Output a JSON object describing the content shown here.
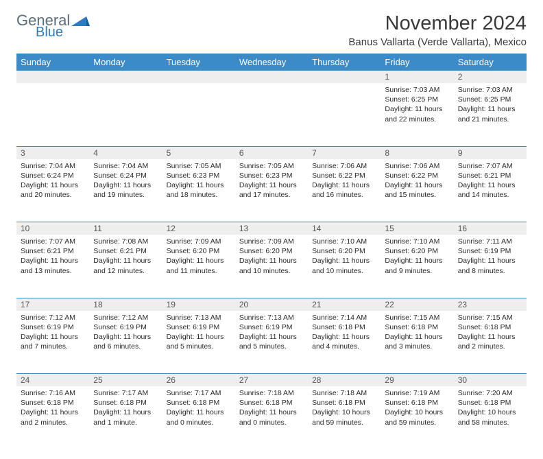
{
  "logo": {
    "general": "General",
    "blue": "Blue"
  },
  "colors": {
    "header_bg": "#3b8bc8",
    "header_text": "#ffffff",
    "daynum_bg": "#eeeeee",
    "border": "#3b8bc8",
    "title": "#3a3a3a",
    "logo_gray": "#5a6d7a",
    "logo_blue": "#2f7bbf"
  },
  "title": "November 2024",
  "subtitle": "Banus Vallarta (Verde Vallarta), Mexico",
  "weekdays": [
    "Sunday",
    "Monday",
    "Tuesday",
    "Wednesday",
    "Thursday",
    "Friday",
    "Saturday"
  ],
  "rows": [
    {
      "nums": [
        "",
        "",
        "",
        "",
        "",
        "1",
        "2"
      ],
      "cells": [
        {
          "lines": []
        },
        {
          "lines": []
        },
        {
          "lines": []
        },
        {
          "lines": []
        },
        {
          "lines": []
        },
        {
          "lines": [
            "Sunrise: 7:03 AM",
            "Sunset: 6:25 PM",
            "Daylight: 11 hours and 22 minutes."
          ]
        },
        {
          "lines": [
            "Sunrise: 7:03 AM",
            "Sunset: 6:25 PM",
            "Daylight: 11 hours and 21 minutes."
          ]
        }
      ]
    },
    {
      "nums": [
        "3",
        "4",
        "5",
        "6",
        "7",
        "8",
        "9"
      ],
      "cells": [
        {
          "lines": [
            "Sunrise: 7:04 AM",
            "Sunset: 6:24 PM",
            "Daylight: 11 hours and 20 minutes."
          ]
        },
        {
          "lines": [
            "Sunrise: 7:04 AM",
            "Sunset: 6:24 PM",
            "Daylight: 11 hours and 19 minutes."
          ]
        },
        {
          "lines": [
            "Sunrise: 7:05 AM",
            "Sunset: 6:23 PM",
            "Daylight: 11 hours and 18 minutes."
          ]
        },
        {
          "lines": [
            "Sunrise: 7:05 AM",
            "Sunset: 6:23 PM",
            "Daylight: 11 hours and 17 minutes."
          ]
        },
        {
          "lines": [
            "Sunrise: 7:06 AM",
            "Sunset: 6:22 PM",
            "Daylight: 11 hours and 16 minutes."
          ]
        },
        {
          "lines": [
            "Sunrise: 7:06 AM",
            "Sunset: 6:22 PM",
            "Daylight: 11 hours and 15 minutes."
          ]
        },
        {
          "lines": [
            "Sunrise: 7:07 AM",
            "Sunset: 6:21 PM",
            "Daylight: 11 hours and 14 minutes."
          ]
        }
      ]
    },
    {
      "nums": [
        "10",
        "11",
        "12",
        "13",
        "14",
        "15",
        "16"
      ],
      "cells": [
        {
          "lines": [
            "Sunrise: 7:07 AM",
            "Sunset: 6:21 PM",
            "Daylight: 11 hours and 13 minutes."
          ]
        },
        {
          "lines": [
            "Sunrise: 7:08 AM",
            "Sunset: 6:21 PM",
            "Daylight: 11 hours and 12 minutes."
          ]
        },
        {
          "lines": [
            "Sunrise: 7:09 AM",
            "Sunset: 6:20 PM",
            "Daylight: 11 hours and 11 minutes."
          ]
        },
        {
          "lines": [
            "Sunrise: 7:09 AM",
            "Sunset: 6:20 PM",
            "Daylight: 11 hours and 10 minutes."
          ]
        },
        {
          "lines": [
            "Sunrise: 7:10 AM",
            "Sunset: 6:20 PM",
            "Daylight: 11 hours and 10 minutes."
          ]
        },
        {
          "lines": [
            "Sunrise: 7:10 AM",
            "Sunset: 6:20 PM",
            "Daylight: 11 hours and 9 minutes."
          ]
        },
        {
          "lines": [
            "Sunrise: 7:11 AM",
            "Sunset: 6:19 PM",
            "Daylight: 11 hours and 8 minutes."
          ]
        }
      ]
    },
    {
      "nums": [
        "17",
        "18",
        "19",
        "20",
        "21",
        "22",
        "23"
      ],
      "cells": [
        {
          "lines": [
            "Sunrise: 7:12 AM",
            "Sunset: 6:19 PM",
            "Daylight: 11 hours and 7 minutes."
          ]
        },
        {
          "lines": [
            "Sunrise: 7:12 AM",
            "Sunset: 6:19 PM",
            "Daylight: 11 hours and 6 minutes."
          ]
        },
        {
          "lines": [
            "Sunrise: 7:13 AM",
            "Sunset: 6:19 PM",
            "Daylight: 11 hours and 5 minutes."
          ]
        },
        {
          "lines": [
            "Sunrise: 7:13 AM",
            "Sunset: 6:19 PM",
            "Daylight: 11 hours and 5 minutes."
          ]
        },
        {
          "lines": [
            "Sunrise: 7:14 AM",
            "Sunset: 6:18 PM",
            "Daylight: 11 hours and 4 minutes."
          ]
        },
        {
          "lines": [
            "Sunrise: 7:15 AM",
            "Sunset: 6:18 PM",
            "Daylight: 11 hours and 3 minutes."
          ]
        },
        {
          "lines": [
            "Sunrise: 7:15 AM",
            "Sunset: 6:18 PM",
            "Daylight: 11 hours and 2 minutes."
          ]
        }
      ]
    },
    {
      "nums": [
        "24",
        "25",
        "26",
        "27",
        "28",
        "29",
        "30"
      ],
      "cells": [
        {
          "lines": [
            "Sunrise: 7:16 AM",
            "Sunset: 6:18 PM",
            "Daylight: 11 hours and 2 minutes."
          ]
        },
        {
          "lines": [
            "Sunrise: 7:17 AM",
            "Sunset: 6:18 PM",
            "Daylight: 11 hours and 1 minute."
          ]
        },
        {
          "lines": [
            "Sunrise: 7:17 AM",
            "Sunset: 6:18 PM",
            "Daylight: 11 hours and 0 minutes."
          ]
        },
        {
          "lines": [
            "Sunrise: 7:18 AM",
            "Sunset: 6:18 PM",
            "Daylight: 11 hours and 0 minutes."
          ]
        },
        {
          "lines": [
            "Sunrise: 7:18 AM",
            "Sunset: 6:18 PM",
            "Daylight: 10 hours and 59 minutes."
          ]
        },
        {
          "lines": [
            "Sunrise: 7:19 AM",
            "Sunset: 6:18 PM",
            "Daylight: 10 hours and 59 minutes."
          ]
        },
        {
          "lines": [
            "Sunrise: 7:20 AM",
            "Sunset: 6:18 PM",
            "Daylight: 10 hours and 58 minutes."
          ]
        }
      ]
    }
  ]
}
